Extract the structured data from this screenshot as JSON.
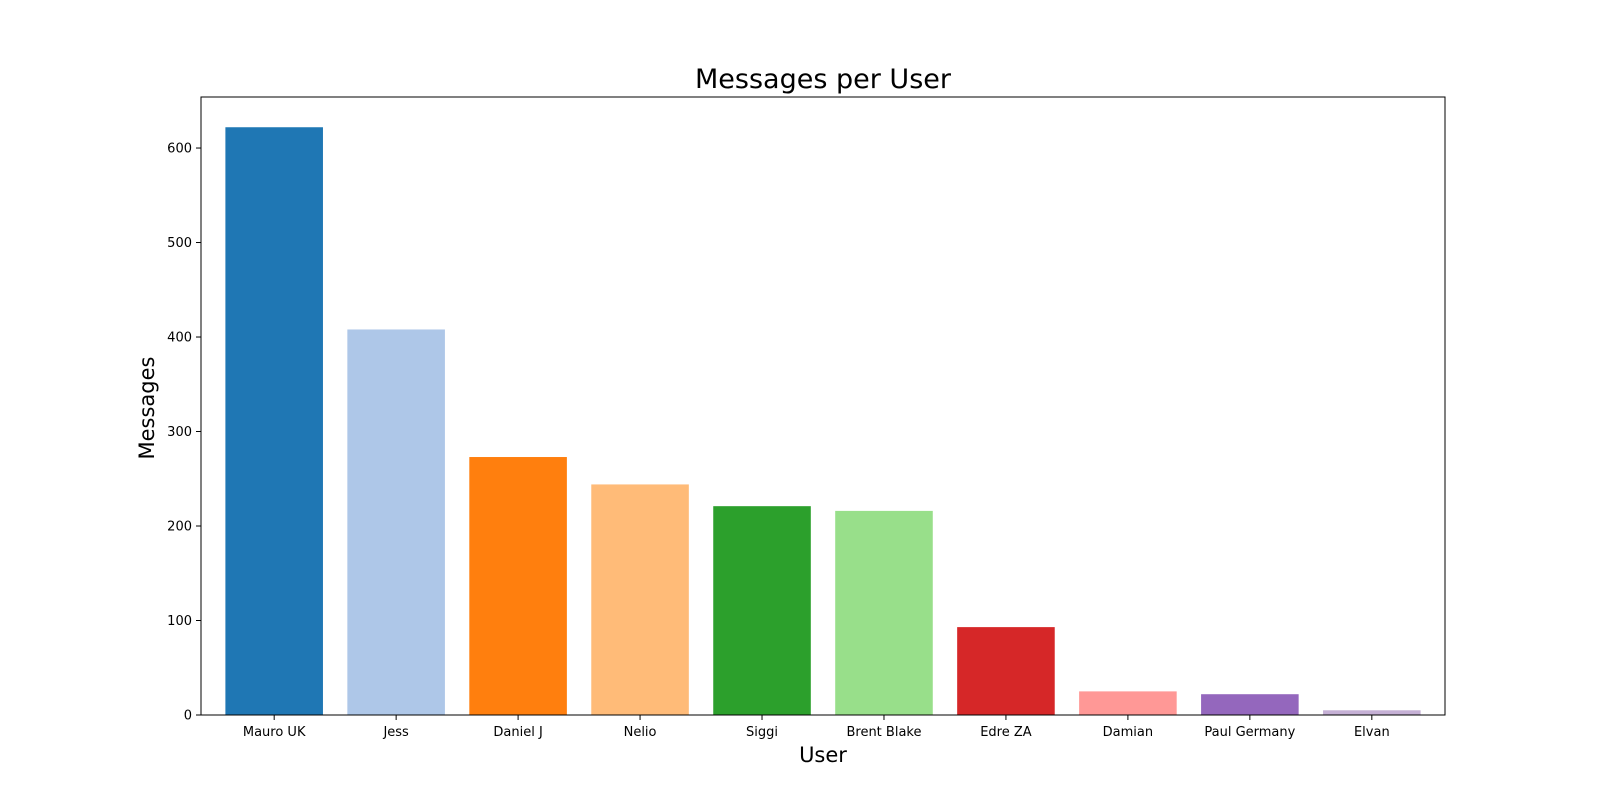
{
  "chart_data": {
    "type": "bar",
    "title": "Messages per User",
    "xlabel": "User",
    "ylabel": "Messages",
    "categories": [
      "Mauro UK",
      "Jess",
      "Daniel J",
      "Nelio",
      "Siggi",
      "Brent Blake",
      "Edre ZA",
      "Damian",
      "Paul Germany",
      "Elvan"
    ],
    "values": [
      622,
      408,
      273,
      244,
      221,
      216,
      93,
      25,
      22,
      5
    ],
    "colors": [
      "#1f77b4",
      "#aec7e8",
      "#ff7f0e",
      "#ffbb78",
      "#2ca02c",
      "#98df8a",
      "#d62728",
      "#ff9896",
      "#9467bd",
      "#c5b0d5"
    ],
    "ylim": [
      0,
      654
    ],
    "yticks": [
      0,
      100,
      200,
      300,
      400,
      500,
      600
    ],
    "grid": false,
    "legend": "none"
  }
}
